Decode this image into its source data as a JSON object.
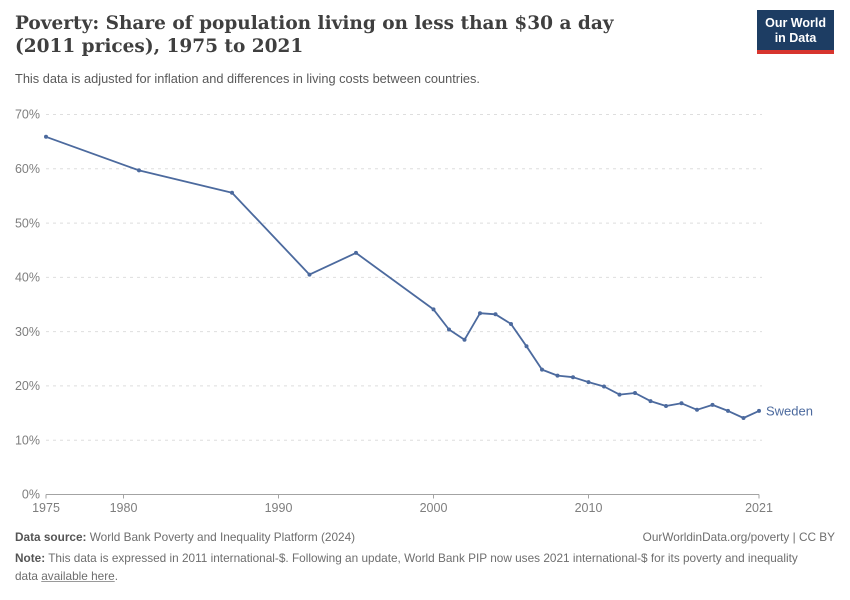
{
  "header": {
    "title": "Poverty: Share of population living on less than $30 a day (2011 prices), 1975 to 2021",
    "subtitle": "This data is adjusted for inflation and differences in living costs between countries.",
    "logo": {
      "line1": "Our World",
      "line2": "in Data"
    }
  },
  "chart_data": {
    "type": "line",
    "title": "Poverty: Share of population living on less than $30 a day (2011 prices), 1975 to 2021",
    "xlabel": "",
    "ylabel": "",
    "x_range": [
      1975,
      2021
    ],
    "y_range": [
      0,
      70
    ],
    "x_ticks": [
      1975,
      1980,
      1990,
      2000,
      2010,
      2021
    ],
    "y_ticks": [
      0,
      10,
      20,
      30,
      40,
      50,
      60,
      70
    ],
    "y_tick_suffix": "%",
    "grid": "dashed-horizontal",
    "legend_position": "end-of-line-label",
    "series": [
      {
        "name": "Sweden",
        "color": "#4c6a9e",
        "points": [
          [
            1975,
            65.9
          ],
          [
            1981,
            59.7
          ],
          [
            1987,
            55.6
          ],
          [
            1992,
            40.5
          ],
          [
            1995,
            44.5
          ],
          [
            2000,
            34.1
          ],
          [
            2001,
            30.4
          ],
          [
            2002,
            28.5
          ],
          [
            2003,
            33.4
          ],
          [
            2004,
            33.2
          ],
          [
            2005,
            31.4
          ],
          [
            2006,
            27.3
          ],
          [
            2007,
            23.0
          ],
          [
            2008,
            21.9
          ],
          [
            2009,
            21.6
          ],
          [
            2010,
            20.7
          ],
          [
            2011,
            19.9
          ],
          [
            2012,
            18.4
          ],
          [
            2013,
            18.7
          ],
          [
            2014,
            17.2
          ],
          [
            2015,
            16.3
          ],
          [
            2016,
            16.8
          ],
          [
            2017,
            15.6
          ],
          [
            2018,
            16.5
          ],
          [
            2019,
            15.4
          ],
          [
            2020,
            14.1
          ],
          [
            2021,
            15.4
          ]
        ]
      }
    ]
  },
  "footer": {
    "datasource_label": "Data source:",
    "datasource": " World Bank Poverty and Inequality Platform (2024)",
    "attribution": "OurWorldinData.org/poverty | CC BY",
    "note_label": "Note:",
    "note_before_link": " This data is expressed in 2011 international-$. Following an update, World Bank PIP now uses 2021 international-$ for its poverty and inequality data ",
    "note_link": "available here",
    "note_after_link": "."
  },
  "colors": {
    "accent_navy": "#1d3d63",
    "accent_red": "#d7352e",
    "line_blue": "#4c6a9e"
  }
}
